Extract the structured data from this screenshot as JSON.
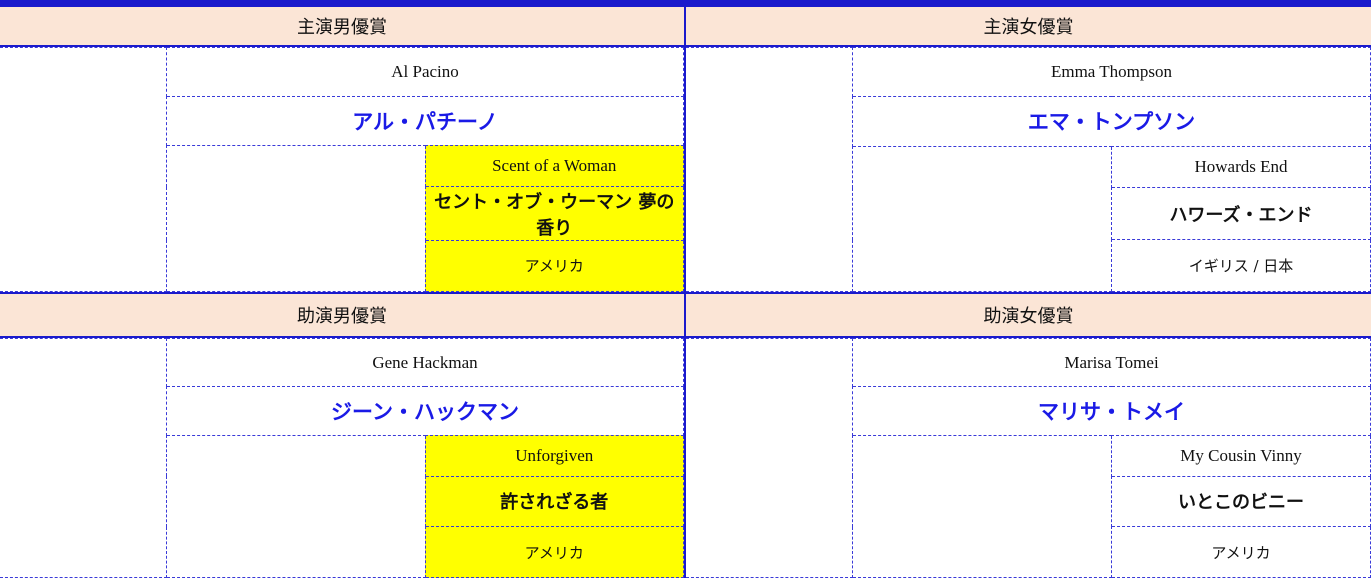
{
  "awards": [
    {
      "category": "主演男優賞",
      "actor_en": "Al Pacino",
      "actor_ja": "アル・パチーノ",
      "film_en": "Scent of a Woman",
      "film_ja": "セント・オブ・ウーマン 夢の香り",
      "country": "アメリカ"
    },
    {
      "category": "主演女優賞",
      "actor_en": "Emma Thompson",
      "actor_ja": "エマ・トンプソン",
      "film_en": "Howards End",
      "film_ja": "ハワーズ・エンド",
      "country": "イギリス / 日本"
    },
    {
      "category": "助演男優賞",
      "actor_en": "Gene Hackman",
      "actor_ja": "ジーン・ハックマン",
      "film_en": "Unforgiven",
      "film_ja": "許されざる者",
      "country": "アメリカ"
    },
    {
      "category": "助演女優賞",
      "actor_en": "Marisa Tomei",
      "actor_ja": "マリサ・トメイ",
      "film_en": "My Cousin Vinny",
      "film_ja": "いとこのビニー",
      "country": "アメリカ"
    }
  ]
}
